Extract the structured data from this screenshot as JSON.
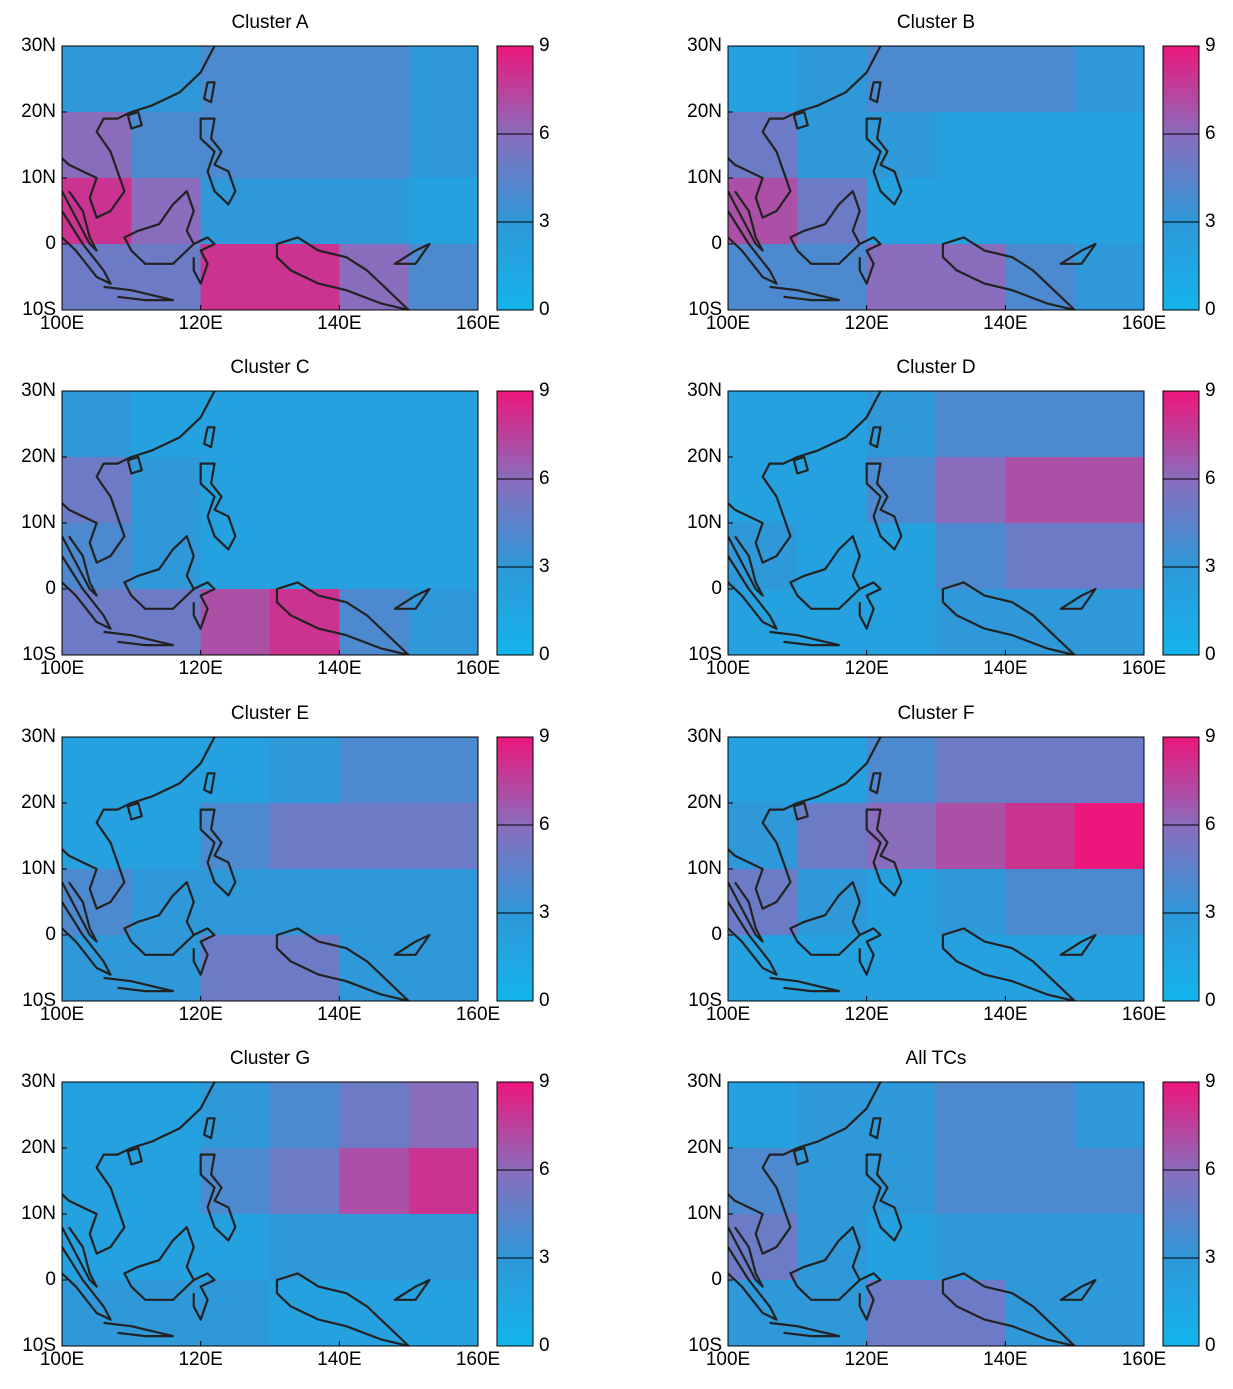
{
  "chart_data": [
    {
      "type": "heatmap",
      "title": "Cluster A",
      "values": [
        [
          3,
          3,
          4,
          4,
          4,
          3
        ],
        [
          6,
          4,
          4,
          4,
          4,
          3
        ],
        [
          8,
          6,
          3,
          3,
          3,
          2
        ],
        [
          5,
          5,
          8,
          8,
          6,
          4
        ]
      ]
    },
    {
      "type": "heatmap",
      "title": "Cluster B",
      "values": [
        [
          2,
          3,
          4,
          4,
          4,
          3
        ],
        [
          5,
          3,
          3,
          2,
          2,
          2
        ],
        [
          7,
          5,
          2,
          2,
          2,
          2
        ],
        [
          4,
          4,
          6,
          6,
          4,
          3
        ]
      ]
    },
    {
      "type": "heatmap",
      "title": "Cluster C",
      "values": [
        [
          3,
          2,
          2,
          2,
          2,
          2
        ],
        [
          5,
          3,
          2,
          2,
          2,
          2
        ],
        [
          4,
          3,
          2,
          2,
          2,
          2
        ],
        [
          5,
          5,
          7,
          8,
          4,
          3
        ]
      ]
    },
    {
      "type": "heatmap",
      "title": "Cluster D",
      "values": [
        [
          2,
          2,
          3,
          4,
          4,
          4
        ],
        [
          2,
          2,
          4,
          6,
          7,
          7
        ],
        [
          3,
          2,
          2,
          4,
          5,
          5
        ],
        [
          2,
          2,
          2,
          3,
          3,
          3
        ]
      ]
    },
    {
      "type": "heatmap",
      "title": "Cluster E",
      "values": [
        [
          2,
          2,
          2,
          3,
          4,
          4
        ],
        [
          2,
          2,
          4,
          5,
          5,
          5
        ],
        [
          4,
          3,
          3,
          3,
          3,
          3
        ],
        [
          3,
          3,
          5,
          5,
          3,
          3
        ]
      ]
    },
    {
      "type": "heatmap",
      "title": "Cluster F",
      "values": [
        [
          2,
          2,
          4,
          5,
          5,
          5
        ],
        [
          3,
          5,
          6,
          7,
          8,
          9
        ],
        [
          5,
          3,
          2,
          3,
          4,
          4
        ],
        [
          2,
          2,
          2,
          2,
          2,
          2
        ]
      ]
    },
    {
      "type": "heatmap",
      "title": "Cluster G",
      "values": [
        [
          2,
          2,
          3,
          4,
          5,
          6
        ],
        [
          2,
          2,
          4,
          5,
          7,
          8
        ],
        [
          2,
          2,
          2,
          3,
          3,
          3
        ],
        [
          3,
          3,
          3,
          2,
          2,
          2
        ]
      ]
    },
    {
      "type": "heatmap",
      "title": "All TCs",
      "values": [
        [
          2,
          3,
          3,
          4,
          4,
          3
        ],
        [
          4,
          3,
          3,
          4,
          4,
          4
        ],
        [
          5,
          3,
          2,
          3,
          3,
          3
        ],
        [
          3,
          3,
          5,
          5,
          3,
          3
        ]
      ]
    }
  ],
  "axes": {
    "xlim": [
      100,
      160
    ],
    "xticks": [
      {
        "value": 100,
        "label": "100E"
      },
      {
        "value": 120,
        "label": "120E"
      },
      {
        "value": 140,
        "label": "140E"
      },
      {
        "value": 160,
        "label": "160E"
      }
    ],
    "ylim": [
      -10,
      30
    ],
    "yticks": [
      {
        "value": -10,
        "label": "10S"
      },
      0,
      {
        "value": 10,
        "label": "10N"
      },
      {
        "value": 20,
        "label": "20N"
      },
      {
        "value": 30,
        "label": "30N"
      }
    ],
    "clim": [
      0,
      9
    ],
    "cticks": [
      0,
      3,
      6,
      9
    ],
    "colormap": [
      "#14b4ec",
      "#2e98d8",
      "#8a6cbc",
      "#ec167c"
    ]
  }
}
